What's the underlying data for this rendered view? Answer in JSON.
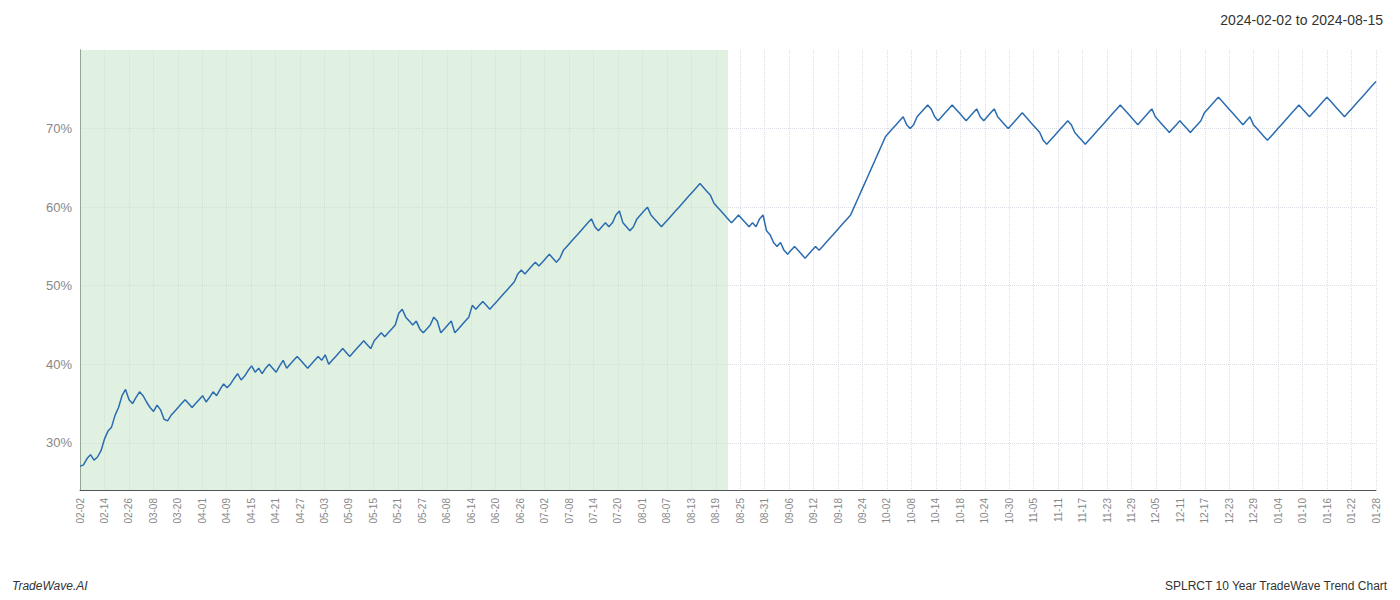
{
  "chart_data": {
    "type": "line",
    "title": "2024-02-02 to 2024-08-15",
    "annotations": [
      {
        "text": "TradeWave.AI"
      },
      {
        "text": "SPLRCT 10 Year TradeWave Trend Chart"
      }
    ],
    "color": "#2b6cb0",
    "highlight": {
      "x": [
        0,
        185
      ],
      "color": "#c8e6c9"
    },
    "grid": true,
    "ylim": [
      24,
      80
    ],
    "yticks": [
      {
        "value": 30,
        "label": "30%"
      },
      {
        "value": 40,
        "label": "40%"
      },
      {
        "value": 50,
        "label": "50%"
      },
      {
        "value": 60,
        "label": "60%"
      },
      {
        "value": 70,
        "label": "70%"
      }
    ],
    "xlim": [
      0,
      370
    ],
    "xticks": [
      {
        "value": 0,
        "label": "02-02"
      },
      {
        "value": 6.9811,
        "label": "02-14"
      },
      {
        "value": 13.9623,
        "label": "02-26"
      },
      {
        "value": 20.9434,
        "label": "03-08"
      },
      {
        "value": 27.9245,
        "label": "03-20"
      },
      {
        "value": 34.9057,
        "label": "04-01"
      },
      {
        "value": 41.8868,
        "label": "04-09"
      },
      {
        "value": 48.8679,
        "label": "04-15"
      },
      {
        "value": 55.8491,
        "label": "04-21"
      },
      {
        "value": 62.8302,
        "label": "04-27"
      },
      {
        "value": 69.8113,
        "label": "05-03"
      },
      {
        "value": 76.7925,
        "label": "05-09"
      },
      {
        "value": 83.7736,
        "label": "05-15"
      },
      {
        "value": 90.7547,
        "label": "05-21"
      },
      {
        "value": 97.7358,
        "label": "05-27"
      },
      {
        "value": 104.717,
        "label": "06-08"
      },
      {
        "value": 111.6981,
        "label": "06-14"
      },
      {
        "value": 118.6792,
        "label": "06-20"
      },
      {
        "value": 125.6604,
        "label": "06-26"
      },
      {
        "value": 132.6415,
        "label": "07-02"
      },
      {
        "value": 139.6226,
        "label": "07-08"
      },
      {
        "value": 146.6038,
        "label": "07-14"
      },
      {
        "value": 153.5849,
        "label": "07-20"
      },
      {
        "value": 160.566,
        "label": "08-01"
      },
      {
        "value": 167.5472,
        "label": "08-07"
      },
      {
        "value": 174.5283,
        "label": "08-13"
      },
      {
        "value": 181.5094,
        "label": "08-19"
      },
      {
        "value": 188.4906,
        "label": "08-25"
      },
      {
        "value": 195.4717,
        "label": "08-31"
      },
      {
        "value": 202.4528,
        "label": "09-06"
      },
      {
        "value": 209.434,
        "label": "09-12"
      },
      {
        "value": 216.4151,
        "label": "09-18"
      },
      {
        "value": 223.3962,
        "label": "09-24"
      },
      {
        "value": 230.3774,
        "label": "10-02"
      },
      {
        "value": 237.3585,
        "label": "10-08"
      },
      {
        "value": 244.3396,
        "label": "10-14"
      },
      {
        "value": 251.3208,
        "label": "10-18"
      },
      {
        "value": 258.3019,
        "label": "10-24"
      },
      {
        "value": 265.283,
        "label": "10-30"
      },
      {
        "value": 272.2642,
        "label": "11-05"
      },
      {
        "value": 279.2453,
        "label": "11-11"
      },
      {
        "value": 286.2264,
        "label": "11-17"
      },
      {
        "value": 293.2075,
        "label": "11-23"
      },
      {
        "value": 300.1887,
        "label": "11-29"
      },
      {
        "value": 307.1698,
        "label": "12-05"
      },
      {
        "value": 314.1509,
        "label": "12-11"
      },
      {
        "value": 321.1321,
        "label": "12-17"
      },
      {
        "value": 328.1132,
        "label": "12-23"
      },
      {
        "value": 335.0943,
        "label": "12-29"
      },
      {
        "value": 342.0755,
        "label": "01-04"
      },
      {
        "value": 349.0566,
        "label": "01-10"
      },
      {
        "value": 356.0377,
        "label": "01-16"
      },
      {
        "value": 363.0189,
        "label": "01-22"
      },
      {
        "value": 370,
        "label": "01-28"
      }
    ],
    "x": [
      0,
      1,
      2,
      3,
      4,
      5,
      6,
      7,
      8,
      9,
      10,
      11,
      12,
      13,
      14,
      15,
      16,
      17,
      18,
      19,
      20,
      21,
      22,
      23,
      24,
      25,
      26,
      27,
      28,
      29,
      30,
      31,
      32,
      33,
      34,
      35,
      36,
      37,
      38,
      39,
      40,
      41,
      42,
      43,
      44,
      45,
      46,
      47,
      48,
      49,
      50,
      51,
      52,
      53,
      54,
      55,
      56,
      57,
      58,
      59,
      60,
      61,
      62,
      63,
      64,
      65,
      66,
      67,
      68,
      69,
      70,
      71,
      72,
      73,
      74,
      75,
      76,
      77,
      78,
      79,
      80,
      81,
      82,
      83,
      84,
      85,
      86,
      87,
      88,
      89,
      90,
      91,
      92,
      93,
      94,
      95,
      96,
      97,
      98,
      99,
      100,
      101,
      102,
      103,
      104,
      105,
      106,
      107,
      108,
      109,
      110,
      111,
      112,
      113,
      114,
      115,
      116,
      117,
      118,
      119,
      120,
      121,
      122,
      123,
      124,
      125,
      126,
      127,
      128,
      129,
      130,
      131,
      132,
      133,
      134,
      135,
      136,
      137,
      138,
      139,
      140,
      141,
      142,
      143,
      144,
      145,
      146,
      147,
      148,
      149,
      150,
      151,
      152,
      153,
      154,
      155,
      156,
      157,
      158,
      159,
      160,
      161,
      162,
      163,
      164,
      165,
      166,
      167,
      168,
      169,
      170,
      171,
      172,
      173,
      174,
      175,
      176,
      177,
      178,
      179,
      180,
      181,
      182,
      183,
      184,
      185,
      186,
      187,
      188,
      189,
      190,
      191,
      192,
      193,
      194,
      195,
      196,
      197,
      198,
      199,
      200,
      201,
      202,
      203,
      204,
      205,
      206,
      207,
      208,
      209,
      210,
      211,
      212,
      213,
      214,
      215,
      216,
      217,
      218,
      219,
      220,
      221,
      222,
      223,
      224,
      225,
      226,
      227,
      228,
      229,
      230,
      231,
      232,
      233,
      234,
      235,
      236,
      237,
      238,
      239,
      240,
      241,
      242,
      243,
      244,
      245,
      246,
      247,
      248,
      249,
      250,
      251,
      252,
      253,
      254,
      255,
      256,
      257,
      258,
      259,
      260,
      261,
      262,
      263,
      264,
      265,
      266,
      267,
      268,
      269,
      270,
      271,
      272,
      273,
      274,
      275,
      276,
      277,
      278,
      279,
      280,
      281,
      282,
      283,
      284,
      285,
      286,
      287,
      288,
      289,
      290,
      291,
      292,
      293,
      294,
      295,
      296,
      297,
      298,
      299,
      300,
      301,
      302,
      303,
      304,
      305,
      306,
      307,
      308,
      309,
      310,
      311,
      312,
      313,
      314,
      315,
      316,
      317,
      318,
      319,
      320,
      321,
      322,
      323,
      324,
      325,
      326,
      327,
      328,
      329,
      330,
      331,
      332,
      333,
      334,
      335,
      336,
      337,
      338,
      339,
      340,
      341,
      342,
      343,
      344,
      345,
      346,
      347,
      348,
      349,
      350,
      351,
      352,
      353,
      354,
      355,
      356,
      357,
      358,
      359,
      360,
      361,
      362,
      363,
      364,
      365,
      366,
      367,
      368,
      369,
      370
    ],
    "values": [
      27.0,
      27.2,
      28.0,
      28.5,
      27.8,
      28.2,
      29.0,
      30.5,
      31.5,
      32.0,
      33.5,
      34.5,
      36.0,
      36.8,
      35.5,
      35.0,
      35.8,
      36.5,
      36.0,
      35.2,
      34.5,
      34.0,
      34.8,
      34.2,
      33.0,
      32.8,
      33.5,
      34.0,
      34.5,
      35.0,
      35.5,
      35.0,
      34.5,
      35.0,
      35.5,
      36.0,
      35.2,
      35.8,
      36.5,
      36.0,
      36.8,
      37.5,
      37.0,
      37.5,
      38.2,
      38.8,
      38.0,
      38.5,
      39.2,
      39.8,
      39.0,
      39.5,
      38.8,
      39.5,
      40.0,
      39.5,
      39.0,
      39.8,
      40.5,
      39.5,
      40.0,
      40.5,
      41.0,
      40.5,
      40.0,
      39.5,
      40.0,
      40.5,
      41.0,
      40.5,
      41.2,
      40.0,
      40.5,
      41.0,
      41.5,
      42.0,
      41.5,
      41.0,
      41.5,
      42.0,
      42.5,
      43.0,
      42.5,
      42.0,
      43.0,
      43.5,
      44.0,
      43.5,
      44.0,
      44.5,
      45.0,
      46.5,
      47.0,
      46.0,
      45.5,
      45.0,
      45.5,
      44.5,
      44.0,
      44.5,
      45.0,
      46.0,
      45.5,
      44.0,
      44.5,
      45.0,
      45.5,
      44.0,
      44.5,
      45.0,
      45.5,
      46.0,
      47.5,
      47.0,
      47.5,
      48.0,
      47.5,
      47.0,
      47.5,
      48.0,
      48.5,
      49.0,
      49.5,
      50.0,
      50.5,
      51.5,
      52.0,
      51.5,
      52.0,
      52.5,
      53.0,
      52.5,
      53.0,
      53.5,
      54.0,
      53.5,
      53.0,
      53.5,
      54.5,
      55.0,
      55.5,
      56.0,
      56.5,
      57.0,
      57.5,
      58.0,
      58.5,
      57.5,
      57.0,
      57.5,
      58.0,
      57.5,
      58.0,
      59.0,
      59.5,
      58.0,
      57.5,
      57.0,
      57.5,
      58.5,
      59.0,
      59.5,
      60.0,
      59.0,
      58.5,
      58.0,
      57.5,
      58.0,
      58.5,
      59.0,
      59.5,
      60.0,
      60.5,
      61.0,
      61.5,
      62.0,
      62.5,
      63.0,
      62.5,
      62.0,
      61.5,
      60.5,
      60.0,
      59.5,
      59.0,
      58.5,
      58.0,
      58.5,
      59.0,
      58.5,
      58.0,
      57.5,
      58.0,
      57.5,
      58.5,
      59.0,
      57.0,
      56.5,
      55.5,
      55.0,
      55.5,
      54.5,
      54.0,
      54.5,
      55.0,
      54.5,
      54.0,
      53.5,
      54.0,
      54.5,
      55.0,
      54.5,
      55.0,
      55.5,
      56.0,
      56.5,
      57.0,
      57.5,
      58.0,
      58.5,
      59.0,
      60.0,
      61.0,
      62.0,
      63.0,
      64.0,
      65.0,
      66.0,
      67.0,
      68.0,
      69.0,
      69.5,
      70.0,
      70.5,
      71.0,
      71.5,
      70.5,
      70.0,
      70.5,
      71.5,
      72.0,
      72.5,
      73.0,
      72.5,
      71.5,
      71.0,
      71.5,
      72.0,
      72.5,
      73.0,
      72.5,
      72.0,
      71.5,
      71.0,
      71.5,
      72.0,
      72.5,
      71.5,
      71.0,
      71.5,
      72.0,
      72.5,
      71.5,
      71.0,
      70.5,
      70.0,
      70.5,
      71.0,
      71.5,
      72.0,
      71.5,
      71.0,
      70.5,
      70.0,
      69.5,
      68.5,
      68.0,
      68.5,
      69.0,
      69.5,
      70.0,
      70.5,
      71.0,
      70.5,
      69.5,
      69.0,
      68.5,
      68.0,
      68.5,
      69.0,
      69.5,
      70.0,
      70.5,
      71.0,
      71.5,
      72.0,
      72.5,
      73.0,
      72.5,
      72.0,
      71.5,
      71.0,
      70.5,
      71.0,
      71.5,
      72.0,
      72.5,
      71.5,
      71.0,
      70.5,
      70.0,
      69.5,
      70.0,
      70.5,
      71.0,
      70.5,
      70.0,
      69.5,
      70.0,
      70.5,
      71.0,
      72.0,
      72.5,
      73.0,
      73.5,
      74.0,
      73.5,
      73.0,
      72.5,
      72.0,
      71.5,
      71.0,
      70.5,
      71.0,
      71.5,
      70.5,
      70.0,
      69.5,
      69.0,
      68.5,
      69.0,
      69.5,
      70.0,
      70.5,
      71.0,
      71.5,
      72.0,
      72.5,
      73.0,
      72.5,
      72.0,
      71.5,
      72.0,
      72.5,
      73.0,
      73.5,
      74.0,
      73.5,
      73.0,
      72.5,
      72.0,
      71.5,
      72.0,
      72.5,
      73.0,
      73.5,
      74.0,
      74.5,
      75.0,
      75.5,
      76.0
    ]
  }
}
